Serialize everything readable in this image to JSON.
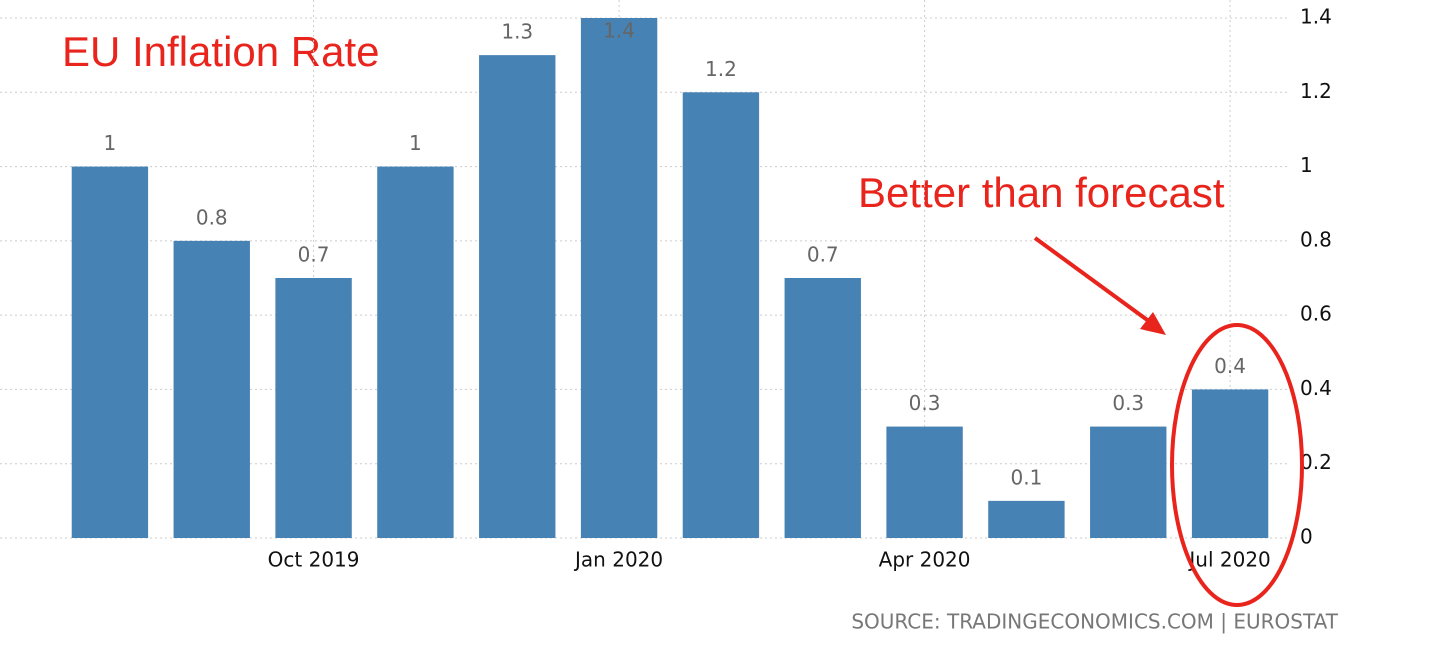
{
  "chart_data": {
    "type": "bar",
    "title": "EU Inflation Rate",
    "annotation": "Better than forecast",
    "source": "SOURCE: TRADINGECONOMICS.COM | EUROSTAT",
    "categories": [
      null,
      null,
      "Oct 2019",
      null,
      null,
      "Jan 2020",
      null,
      null,
      "Apr 2020",
      null,
      null,
      "Jul 2020"
    ],
    "values": [
      1,
      0.8,
      0.7,
      1,
      1.3,
      1.4,
      1.2,
      0.7,
      0.3,
      0.1,
      0.3,
      0.4
    ],
    "color": "#4682b4",
    "ylim": [
      0,
      1.4
    ],
    "yticks": [
      0,
      0.2,
      0.4,
      0.6,
      0.8,
      1,
      1.2,
      1.4
    ],
    "grid": true
  }
}
